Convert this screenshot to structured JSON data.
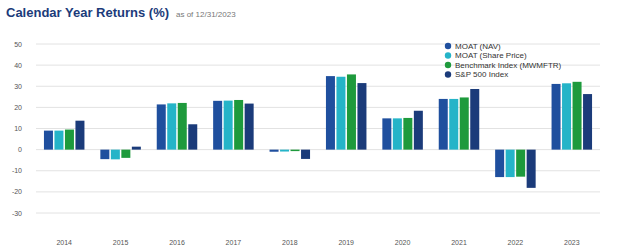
{
  "chart_data": {
    "type": "bar",
    "title": "Calendar Year Returns (%)",
    "subtitle": "as of 12/31/2023",
    "categories": [
      "2014",
      "2015",
      "2016",
      "2017",
      "2018",
      "2019",
      "2020",
      "2021",
      "2022",
      "2023"
    ],
    "series": [
      {
        "name": "MOAT (NAV)",
        "color": "#1f4f9e",
        "values": [
          9.0,
          -4.5,
          21.4,
          23.1,
          -1.0,
          34.8,
          14.8,
          24.0,
          -13.0,
          31.1
        ]
      },
      {
        "name": "MOAT (Share Price)",
        "color": "#25b4c8",
        "values": [
          9.0,
          -4.6,
          21.9,
          23.2,
          -0.9,
          34.5,
          14.8,
          24.0,
          -13.0,
          31.4
        ]
      },
      {
        "name": "Benchmark Index (MWMFTR)",
        "color": "#1e9a3c",
        "values": [
          9.5,
          -3.9,
          22.1,
          23.5,
          -0.7,
          35.6,
          15.0,
          24.7,
          -12.8,
          32.1
        ]
      },
      {
        "name": "S&P 500 Index",
        "color": "#1b3b7a",
        "values": [
          13.7,
          1.4,
          12.0,
          21.8,
          -4.4,
          31.5,
          18.4,
          28.7,
          -18.1,
          26.3
        ]
      }
    ],
    "ylim": [
      -30,
      50
    ],
    "yticks": [
      -30,
      -20,
      -10,
      0,
      10,
      20,
      30,
      40,
      50
    ],
    "grid": true,
    "legend": "top-right"
  }
}
